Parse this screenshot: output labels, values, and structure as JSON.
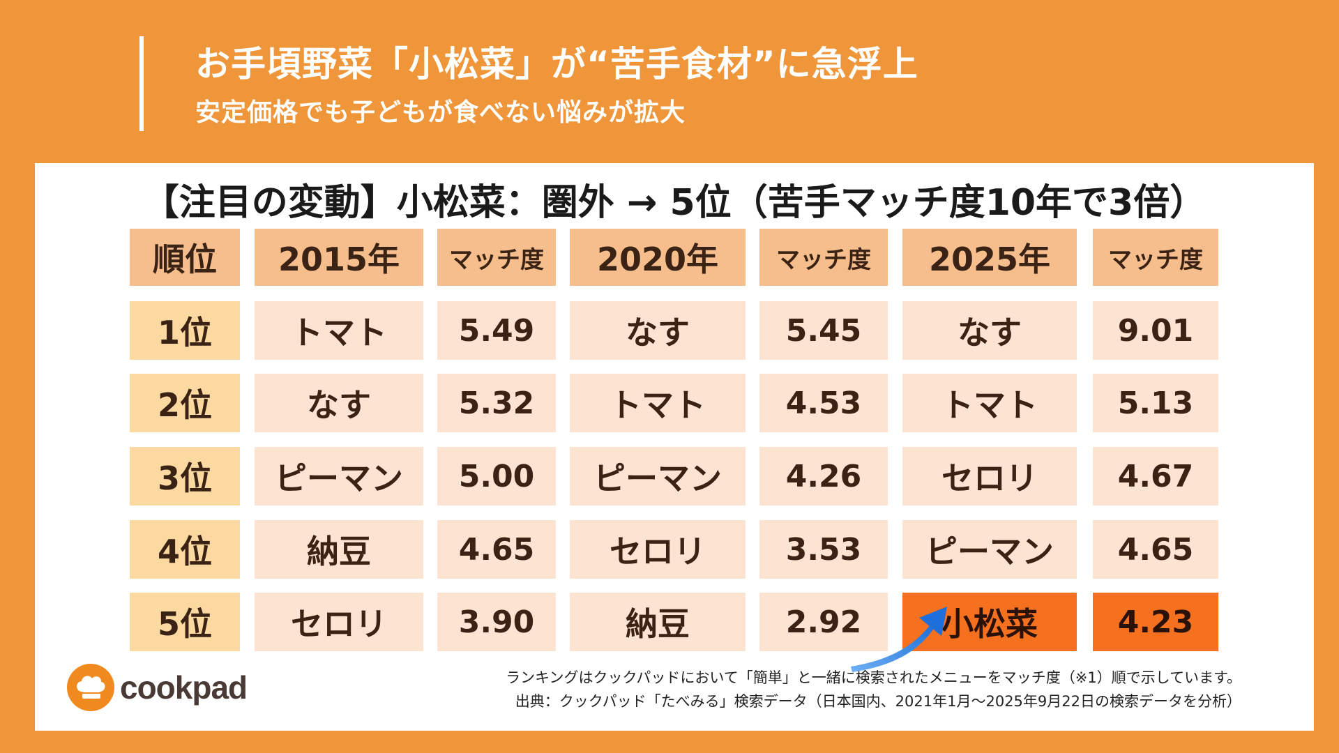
{
  "header": {
    "title": "お手頃野菜「小松菜」が“苦手食材”に急浮上",
    "subtitle": "安定価格でも子どもが食べない悩みが拡大"
  },
  "colors": {
    "background": "#F0963A",
    "header_cell": "#F5BE8C",
    "rank_cell": "#FDD9A2",
    "body_cell": "#FDE4D2",
    "highlight": "#F57120",
    "arrow": "#2E7BE0"
  },
  "chart_data": {
    "type": "table",
    "title": "【注目の変動】小松菜：圏外 → 5位（苦手マッチ度10年で3倍）",
    "columns": [
      "順位",
      "2015年",
      "マッチ度",
      "2020年",
      "マッチ度",
      "2025年",
      "マッチ度"
    ],
    "rows": [
      [
        "1位",
        "トマト",
        "5.49",
        "なす",
        "5.45",
        "なす",
        "9.01"
      ],
      [
        "2位",
        "なす",
        "5.32",
        "トマト",
        "4.53",
        "トマト",
        "5.13"
      ],
      [
        "3位",
        "ピーマン",
        "5.00",
        "ピーマン",
        "4.26",
        "セロリ",
        "4.67"
      ],
      [
        "4位",
        "納豆",
        "4.65",
        "セロリ",
        "3.53",
        "ピーマン",
        "4.65"
      ],
      [
        "5位",
        "セロリ",
        "3.90",
        "納豆",
        "2.92",
        "小松菜",
        "4.23"
      ]
    ],
    "highlight": {
      "row": 4,
      "columns": [
        5,
        6
      ],
      "arrow_icon": "up-right-arrow-icon"
    }
  },
  "footnotes": [
    "ランキングはクックパッドにおいて「簡単」と一緒に検索されたメニューをマッチ度（※1）順で示しています。",
    "出典：クックパッド「たべみる」検索データ（日本国内、2021年1月〜2025年9月22日の検索データを分析）"
  ],
  "brand": {
    "logo_text": "cookpad",
    "logo_icon": "chef-hat-icon"
  }
}
